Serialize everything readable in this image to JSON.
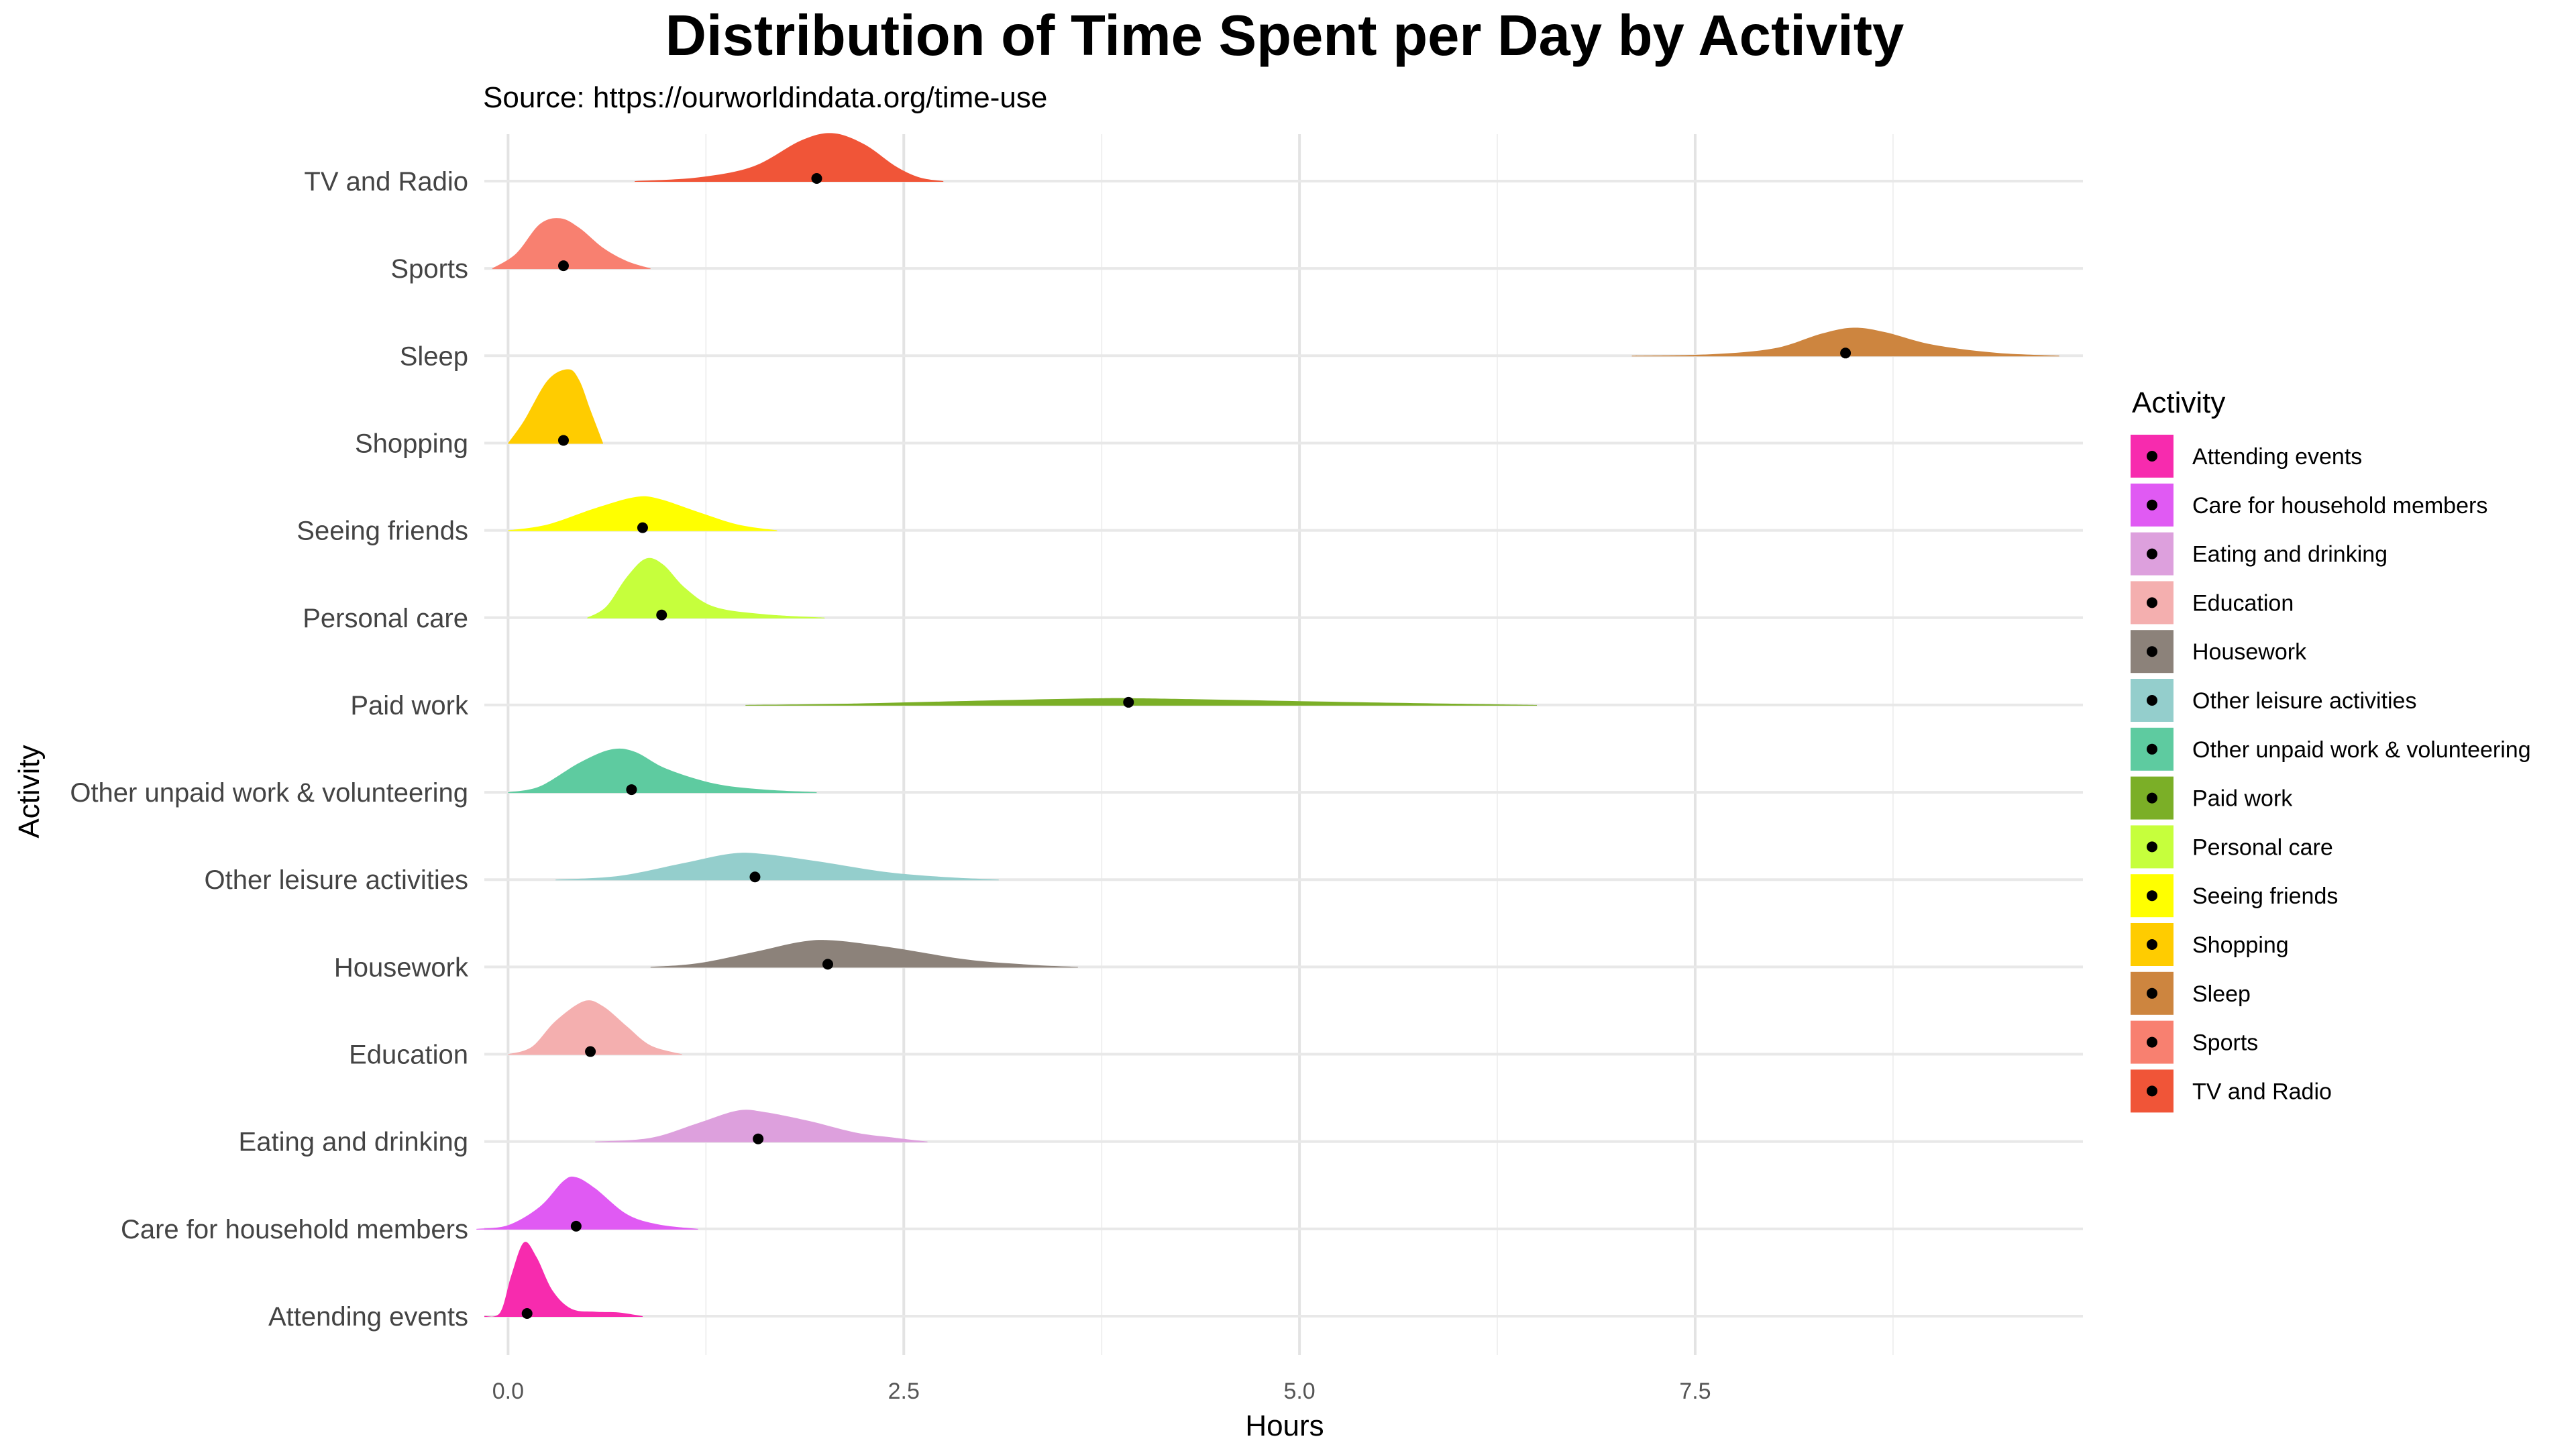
{
  "chart_data": {
    "type": "ridgeline",
    "title": "Distribution of Time Spent per Day by Activity",
    "subtitle": "Source: https://ourworldindata.org/time-use",
    "xlabel": "Hours",
    "ylabel": "Activity",
    "xlim": [
      -0.15,
      9.95
    ],
    "x_ticks": [
      0,
      2.5,
      5,
      7.5
    ],
    "x_tick_labels": [
      "0.0",
      "2.5",
      "5.0",
      "7.5"
    ],
    "grid": true,
    "legend_title": "Activity",
    "legend_position": "right",
    "series": [
      {
        "name": "Attending events",
        "color": "#F72BAE",
        "point": 0.12,
        "density": [
          [
            -0.15,
            0
          ],
          [
            -0.05,
            0.05
          ],
          [
            0.02,
            0.55
          ],
          [
            0.1,
            1.0
          ],
          [
            0.18,
            0.8
          ],
          [
            0.28,
            0.35
          ],
          [
            0.4,
            0.1
          ],
          [
            0.55,
            0.06
          ],
          [
            0.7,
            0.05
          ],
          [
            0.85,
            0
          ]
        ]
      },
      {
        "name": "Care for household members",
        "color": "#E05AF3",
        "point": 0.43,
        "density": [
          [
            -0.2,
            0
          ],
          [
            0.0,
            0.05
          ],
          [
            0.2,
            0.3
          ],
          [
            0.35,
            0.65
          ],
          [
            0.43,
            0.7
          ],
          [
            0.55,
            0.55
          ],
          [
            0.75,
            0.2
          ],
          [
            0.95,
            0.06
          ],
          [
            1.2,
            0
          ]
        ]
      },
      {
        "name": "Eating and drinking",
        "color": "#DDA0DD",
        "point": 1.58,
        "density": [
          [
            0.55,
            0
          ],
          [
            0.9,
            0.05
          ],
          [
            1.2,
            0.25
          ],
          [
            1.45,
            0.42
          ],
          [
            1.62,
            0.4
          ],
          [
            1.9,
            0.28
          ],
          [
            2.2,
            0.12
          ],
          [
            2.45,
            0.05
          ],
          [
            2.65,
            0
          ]
        ]
      },
      {
        "name": "Education",
        "color": "#F4AFAF",
        "point": 0.52,
        "density": [
          [
            0.0,
            0
          ],
          [
            0.15,
            0.1
          ],
          [
            0.3,
            0.45
          ],
          [
            0.48,
            0.72
          ],
          [
            0.6,
            0.65
          ],
          [
            0.75,
            0.38
          ],
          [
            0.9,
            0.12
          ],
          [
            1.1,
            0
          ]
        ]
      },
      {
        "name": "Housework",
        "color": "#8C827A",
        "point": 2.02,
        "density": [
          [
            0.9,
            0
          ],
          [
            1.2,
            0.05
          ],
          [
            1.55,
            0.2
          ],
          [
            1.85,
            0.34
          ],
          [
            2.05,
            0.36
          ],
          [
            2.4,
            0.27
          ],
          [
            2.9,
            0.1
          ],
          [
            3.3,
            0.03
          ],
          [
            3.6,
            0
          ]
        ]
      },
      {
        "name": "Other leisure activities",
        "color": "#94CECC",
        "point": 1.56,
        "density": [
          [
            0.3,
            0
          ],
          [
            0.7,
            0.05
          ],
          [
            1.1,
            0.22
          ],
          [
            1.4,
            0.35
          ],
          [
            1.6,
            0.35
          ],
          [
            1.95,
            0.25
          ],
          [
            2.4,
            0.1
          ],
          [
            2.8,
            0.03
          ],
          [
            3.1,
            0
          ]
        ]
      },
      {
        "name": "Other unpaid work & volunteering",
        "color": "#5ECBA0",
        "point": 0.78,
        "density": [
          [
            0.0,
            0
          ],
          [
            0.2,
            0.08
          ],
          [
            0.45,
            0.4
          ],
          [
            0.65,
            0.58
          ],
          [
            0.8,
            0.55
          ],
          [
            1.0,
            0.32
          ],
          [
            1.3,
            0.12
          ],
          [
            1.6,
            0.04
          ],
          [
            1.95,
            0
          ]
        ]
      },
      {
        "name": "Paid work",
        "color": "#7BAF27",
        "point": 3.92,
        "density": [
          [
            1.5,
            0
          ],
          [
            2.2,
            0.02
          ],
          [
            3.0,
            0.06
          ],
          [
            3.7,
            0.09
          ],
          [
            4.0,
            0.09
          ],
          [
            4.8,
            0.06
          ],
          [
            5.6,
            0.03
          ],
          [
            6.5,
            0
          ]
        ]
      },
      {
        "name": "Personal care",
        "color": "#C6FF3C",
        "point": 0.97,
        "density": [
          [
            0.5,
            0
          ],
          [
            0.62,
            0.15
          ],
          [
            0.75,
            0.55
          ],
          [
            0.87,
            0.8
          ],
          [
            0.98,
            0.72
          ],
          [
            1.12,
            0.4
          ],
          [
            1.3,
            0.15
          ],
          [
            1.6,
            0.05
          ],
          [
            2.0,
            0
          ]
        ]
      },
      {
        "name": "Seeing friends",
        "color": "#FFFF00",
        "point": 0.85,
        "density": [
          [
            0.0,
            0
          ],
          [
            0.25,
            0.08
          ],
          [
            0.55,
            0.3
          ],
          [
            0.8,
            0.45
          ],
          [
            0.95,
            0.43
          ],
          [
            1.2,
            0.25
          ],
          [
            1.45,
            0.08
          ],
          [
            1.7,
            0
          ]
        ]
      },
      {
        "name": "Shopping",
        "color": "#FFCC00",
        "point": 0.35,
        "density": [
          [
            0.0,
            0
          ],
          [
            0.1,
            0.3
          ],
          [
            0.25,
            0.85
          ],
          [
            0.38,
            1.0
          ],
          [
            0.45,
            0.85
          ],
          [
            0.52,
            0.45
          ],
          [
            0.6,
            0
          ]
        ]
      },
      {
        "name": "Sleep",
        "color": "#CD853F",
        "point": 8.45,
        "density": [
          [
            7.1,
            0
          ],
          [
            7.6,
            0.02
          ],
          [
            8.0,
            0.1
          ],
          [
            8.3,
            0.3
          ],
          [
            8.5,
            0.38
          ],
          [
            8.7,
            0.32
          ],
          [
            9.0,
            0.15
          ],
          [
            9.4,
            0.04
          ],
          [
            9.8,
            0
          ]
        ]
      },
      {
        "name": "Sports",
        "color": "#F88070",
        "point": 0.35,
        "density": [
          [
            -0.1,
            0
          ],
          [
            0.05,
            0.2
          ],
          [
            0.2,
            0.6
          ],
          [
            0.33,
            0.68
          ],
          [
            0.45,
            0.55
          ],
          [
            0.6,
            0.28
          ],
          [
            0.75,
            0.1
          ],
          [
            0.9,
            0
          ]
        ]
      },
      {
        "name": "TV and Radio",
        "color": "#F05538",
        "point": 1.95,
        "density": [
          [
            0.8,
            0
          ],
          [
            1.2,
            0.05
          ],
          [
            1.55,
            0.2
          ],
          [
            1.85,
            0.55
          ],
          [
            2.05,
            0.65
          ],
          [
            2.25,
            0.5
          ],
          [
            2.45,
            0.2
          ],
          [
            2.6,
            0.05
          ],
          [
            2.75,
            0
          ]
        ]
      }
    ]
  }
}
